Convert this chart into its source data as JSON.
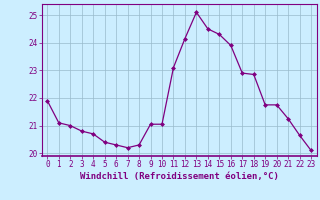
{
  "x": [
    0,
    1,
    2,
    3,
    4,
    5,
    6,
    7,
    8,
    9,
    10,
    11,
    12,
    13,
    14,
    15,
    16,
    17,
    18,
    19,
    20,
    21,
    22,
    23
  ],
  "y": [
    21.9,
    21.1,
    21.0,
    20.8,
    20.7,
    20.4,
    20.3,
    20.2,
    20.3,
    21.05,
    21.05,
    23.1,
    24.15,
    25.1,
    24.5,
    24.3,
    23.9,
    22.9,
    22.85,
    21.75,
    21.75,
    21.25,
    20.65,
    20.1
  ],
  "line_color": "#800080",
  "marker": "D",
  "marker_size": 2,
  "bg_color": "#cceeff",
  "grid_color": "#99bbcc",
  "xlabel": "Windchill (Refroidissement éolien,°C)",
  "xlabel_color": "#800080",
  "tick_color": "#800080",
  "spine_color": "#800080",
  "ylim": [
    19.9,
    25.4
  ],
  "xlim": [
    -0.5,
    23.5
  ],
  "yticks": [
    20,
    21,
    22,
    23,
    24,
    25
  ],
  "xticks": [
    0,
    1,
    2,
    3,
    4,
    5,
    6,
    7,
    8,
    9,
    10,
    11,
    12,
    13,
    14,
    15,
    16,
    17,
    18,
    19,
    20,
    21,
    22,
    23
  ],
  "tick_labelsize": 5.5,
  "xlabel_fontsize": 6.5
}
